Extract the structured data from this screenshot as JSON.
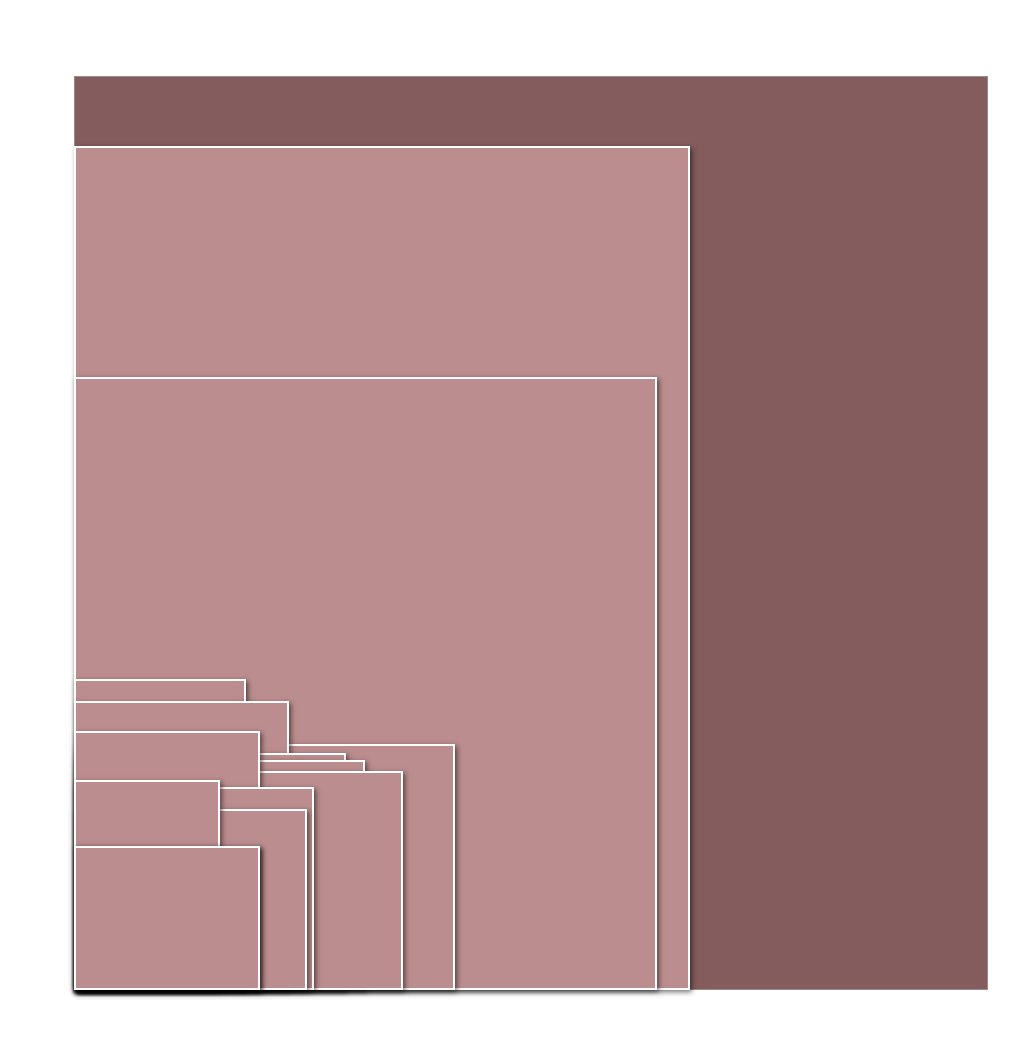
{
  "colors": {
    "background": "#ffffff",
    "outer_fill": "#855c5d",
    "inner_fill": "#bb8d8e",
    "border": "#ffffff"
  },
  "rectangles": [
    {
      "name": "outer-frame-rect",
      "kind": "outer"
    },
    {
      "name": "large-rect-1",
      "kind": "inner"
    },
    {
      "name": "large-rect-2",
      "kind": "inner"
    },
    {
      "name": "medium-rect-1",
      "kind": "inner"
    },
    {
      "name": "small-rect-1",
      "kind": "inner"
    },
    {
      "name": "small-rect-2",
      "kind": "inner"
    },
    {
      "name": "small-rect-3",
      "kind": "inner"
    },
    {
      "name": "small-rect-4",
      "kind": "inner"
    },
    {
      "name": "small-rect-5",
      "kind": "inner"
    },
    {
      "name": "small-rect-6",
      "kind": "inner"
    },
    {
      "name": "small-rect-7",
      "kind": "inner"
    },
    {
      "name": "small-rect-8",
      "kind": "inner"
    },
    {
      "name": "small-rect-9",
      "kind": "inner"
    },
    {
      "name": "small-rect-10",
      "kind": "inner"
    },
    {
      "name": "small-rect-11",
      "kind": "inner"
    }
  ]
}
